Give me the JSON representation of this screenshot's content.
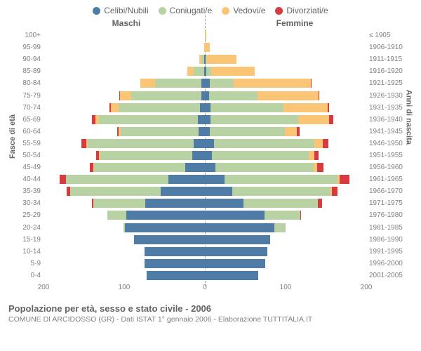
{
  "type": "population-pyramid",
  "legend": [
    {
      "label": "Celibi/Nubili",
      "color": "#4f7ba7"
    },
    {
      "label": "Coniugati/e",
      "color": "#b8d2a3"
    },
    {
      "label": "Vedovi/e",
      "color": "#fac575"
    },
    {
      "label": "Divorziati/e",
      "color": "#d93a3f"
    }
  ],
  "gender_left": "Maschi",
  "gender_right": "Femmine",
  "axis_left_title": "Fasce di età",
  "axis_right_title": "Anni di nascita",
  "x_max": 200,
  "x_ticks": [
    200,
    100,
    0,
    100,
    200
  ],
  "grid_positions_pct": [
    0,
    25,
    50,
    75,
    100
  ],
  "caption_title": "Popolazione per età, sesso e stato civile - 2006",
  "caption_sub": "COMUNE DI ARCIDOSSO (GR) - Dati ISTAT 1° gennaio 2006 - Elaborazione TUTTITALIA.IT",
  "rows": [
    {
      "age": "100+",
      "birth": "≤ 1905",
      "m": [
        0,
        0,
        0,
        0
      ],
      "f": [
        0,
        0,
        2,
        0
      ]
    },
    {
      "age": "95-99",
      "birth": "1906-1910",
      "m": [
        0,
        0,
        1,
        0
      ],
      "f": [
        0,
        0,
        6,
        0
      ]
    },
    {
      "age": "90-94",
      "birth": "1911-1915",
      "m": [
        1,
        3,
        3,
        0
      ],
      "f": [
        1,
        1,
        37,
        0
      ]
    },
    {
      "age": "85-89",
      "birth": "1916-1920",
      "m": [
        1,
        13,
        8,
        0
      ],
      "f": [
        2,
        6,
        54,
        0
      ]
    },
    {
      "age": "80-84",
      "birth": "1921-1925",
      "m": [
        4,
        58,
        18,
        0
      ],
      "f": [
        6,
        30,
        95,
        1
      ]
    },
    {
      "age": "75-79",
      "birth": "1926-1930",
      "m": [
        4,
        87,
        14,
        1
      ],
      "f": [
        5,
        60,
        76,
        1
      ]
    },
    {
      "age": "70-74",
      "birth": "1931-1935",
      "m": [
        6,
        101,
        10,
        1
      ],
      "f": [
        7,
        90,
        55,
        2
      ]
    },
    {
      "age": "65-69",
      "birth": "1936-1940",
      "m": [
        9,
        122,
        5,
        4
      ],
      "f": [
        7,
        109,
        38,
        5
      ]
    },
    {
      "age": "60-64",
      "birth": "1941-1945",
      "m": [
        8,
        96,
        3,
        2
      ],
      "f": [
        6,
        93,
        15,
        3
      ]
    },
    {
      "age": "55-59",
      "birth": "1946-1950",
      "m": [
        14,
        131,
        2,
        6
      ],
      "f": [
        11,
        125,
        10,
        7
      ]
    },
    {
      "age": "50-54",
      "birth": "1951-1955",
      "m": [
        16,
        114,
        1,
        4
      ],
      "f": [
        9,
        120,
        7,
        5
      ]
    },
    {
      "age": "45-49",
      "birth": "1956-1960",
      "m": [
        24,
        113,
        1,
        5
      ],
      "f": [
        13,
        122,
        4,
        8
      ]
    },
    {
      "age": "40-44",
      "birth": "1961-1965",
      "m": [
        45,
        127,
        0,
        8
      ],
      "f": [
        24,
        140,
        3,
        12
      ]
    },
    {
      "age": "35-39",
      "birth": "1966-1970",
      "m": [
        55,
        112,
        0,
        4
      ],
      "f": [
        34,
        122,
        1,
        7
      ]
    },
    {
      "age": "30-34",
      "birth": "1971-1975",
      "m": [
        74,
        64,
        0,
        2
      ],
      "f": [
        48,
        92,
        0,
        5
      ]
    },
    {
      "age": "25-29",
      "birth": "1976-1980",
      "m": [
        97,
        24,
        0,
        0
      ],
      "f": [
        74,
        44,
        0,
        1
      ]
    },
    {
      "age": "20-24",
      "birth": "1981-1985",
      "m": [
        99,
        2,
        0,
        0
      ],
      "f": [
        86,
        14,
        0,
        0
      ]
    },
    {
      "age": "15-19",
      "birth": "1986-1990",
      "m": [
        88,
        0,
        0,
        0
      ],
      "f": [
        81,
        0,
        0,
        0
      ]
    },
    {
      "age": "10-14",
      "birth": "1991-1995",
      "m": [
        75,
        0,
        0,
        0
      ],
      "f": [
        77,
        0,
        0,
        0
      ]
    },
    {
      "age": "5-9",
      "birth": "1996-2000",
      "m": [
        75,
        0,
        0,
        0
      ],
      "f": [
        75,
        0,
        0,
        0
      ]
    },
    {
      "age": "0-4",
      "birth": "2001-2005",
      "m": [
        72,
        0,
        0,
        0
      ],
      "f": [
        66,
        0,
        0,
        0
      ]
    }
  ]
}
